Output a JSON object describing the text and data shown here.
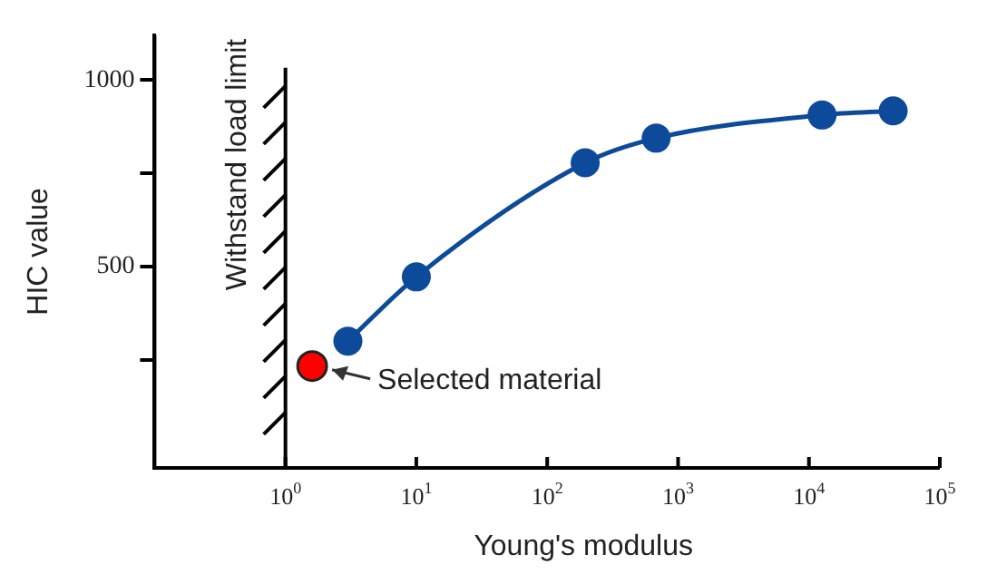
{
  "chart_data": {
    "type": "line",
    "xlabel": "Young's modulus",
    "ylabel": "HIC value",
    "log": "x",
    "xlim": [
      0.1,
      100000
    ],
    "xticks": [
      {
        "value": 1,
        "label": "10$^{0}$"
      },
      {
        "value": 10,
        "label": "10$^{1}$"
      },
      {
        "value": 100,
        "label": "10$^{2}$"
      },
      {
        "value": 1000,
        "label": "10$^{3}$"
      },
      {
        "value": 10000,
        "label": "10$^{4}$"
      },
      {
        "value": 100000,
        "label": "10$^{5}$"
      }
    ],
    "ylim": [
      -40,
      1120
    ],
    "yticks": [
      {
        "value": 250,
        "label": null
      },
      500,
      {
        "value": 750,
        "label": null
      },
      1000
    ],
    "series": [
      {
        "color": "#0d4a9a",
        "x": [
          3,
          10,
          195,
          680,
          12600,
          44000
        ],
        "values": [
          300,
          472,
          778,
          844,
          906,
          917
        ]
      },
      {
        "type": "scatter",
        "color": "#ff0000",
        "x": [
          1.6
        ],
        "values": [
          233
        ]
      }
    ],
    "marker": "circle",
    "line_style": "solid",
    "grid": false,
    "legend": false,
    "ref_lines": [
      {
        "axis": "x",
        "value": 1,
        "label": "Withstand load limit",
        "color": "#000000"
      }
    ],
    "annotations": [
      {
        "text": "Selected material",
        "x": 1.6,
        "y": 233
      }
    ]
  }
}
